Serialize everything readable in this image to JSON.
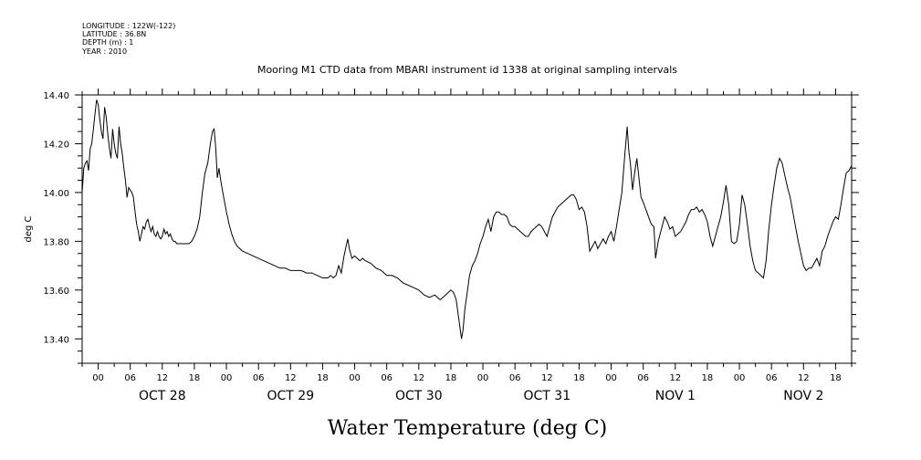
{
  "header": {
    "longitude": "LONGITUDE : 122W(-122)",
    "latitude": "LATITUDE : 36.8N",
    "depth": "DEPTH (m) : 1",
    "year": "YEAR : 2010",
    "title": "Mooring M1 CTD data from MBARI instrument id 1338 at original sampling intervals"
  },
  "chart_data": {
    "type": "line",
    "title": "Mooring M1 CTD data from MBARI instrument id 1338 at original sampling intervals",
    "xlabel": "Water Temperature (deg C)",
    "ylabel": "deg C",
    "ylim": [
      13.3,
      14.4
    ],
    "yticks": [
      "14.40",
      "14.20",
      "14.00",
      "13.80",
      "13.60",
      "13.40"
    ],
    "xlim_hours": [
      -3,
      141
    ],
    "hour_labels": [
      "00",
      "06",
      "12",
      "18"
    ],
    "day_labels": [
      "OCT 28",
      "OCT 29",
      "OCT 30",
      "OCT 31",
      "NOV  1",
      "NOV  2"
    ],
    "grid": false,
    "series": [
      {
        "color": "#000000",
        "points": [
          [
            -3.0,
            14.0
          ],
          [
            -2.7,
            14.1
          ],
          [
            -2.4,
            14.12
          ],
          [
            -2.1,
            14.13
          ],
          [
            -1.8,
            14.09
          ],
          [
            -1.5,
            14.18
          ],
          [
            -1.2,
            14.2
          ],
          [
            -0.9,
            14.26
          ],
          [
            -0.6,
            14.32
          ],
          [
            -0.3,
            14.38
          ],
          [
            0.0,
            14.36
          ],
          [
            0.3,
            14.3
          ],
          [
            0.6,
            14.25
          ],
          [
            0.9,
            14.22
          ],
          [
            1.2,
            14.35
          ],
          [
            1.5,
            14.31
          ],
          [
            1.8,
            14.24
          ],
          [
            2.1,
            14.18
          ],
          [
            2.4,
            14.14
          ],
          [
            2.7,
            14.26
          ],
          [
            3.0,
            14.2
          ],
          [
            3.3,
            14.16
          ],
          [
            3.6,
            14.14
          ],
          [
            3.9,
            14.27
          ],
          [
            4.2,
            14.2
          ],
          [
            4.5,
            14.16
          ],
          [
            4.8,
            14.1
          ],
          [
            5.1,
            14.05
          ],
          [
            5.4,
            13.98
          ],
          [
            5.7,
            14.02
          ],
          [
            6.0,
            14.01
          ],
          [
            6.3,
            14.0
          ],
          [
            6.6,
            13.98
          ],
          [
            6.9,
            13.92
          ],
          [
            7.2,
            13.87
          ],
          [
            7.5,
            13.84
          ],
          [
            7.8,
            13.8
          ],
          [
            8.1,
            13.83
          ],
          [
            8.4,
            13.86
          ],
          [
            8.7,
            13.85
          ],
          [
            9.0,
            13.88
          ],
          [
            9.3,
            13.89
          ],
          [
            9.6,
            13.86
          ],
          [
            9.9,
            13.84
          ],
          [
            10.2,
            13.86
          ],
          [
            10.5,
            13.83
          ],
          [
            10.8,
            13.82
          ],
          [
            11.1,
            13.84
          ],
          [
            11.4,
            13.82
          ],
          [
            11.7,
            13.81
          ],
          [
            12.0,
            13.82
          ],
          [
            12.3,
            13.85
          ],
          [
            12.6,
            13.83
          ],
          [
            12.9,
            13.84
          ],
          [
            13.2,
            13.82
          ],
          [
            13.5,
            13.83
          ],
          [
            13.8,
            13.81
          ],
          [
            14.1,
            13.8
          ],
          [
            14.4,
            13.8
          ],
          [
            14.7,
            13.79
          ],
          [
            15.0,
            13.79
          ],
          [
            15.5,
            13.79
          ],
          [
            16.0,
            13.79
          ],
          [
            16.5,
            13.79
          ],
          [
            17.0,
            13.79
          ],
          [
            17.5,
            13.8
          ],
          [
            18.0,
            13.82
          ],
          [
            18.5,
            13.85
          ],
          [
            19.0,
            13.9
          ],
          [
            19.5,
            14.0
          ],
          [
            20.0,
            14.08
          ],
          [
            20.5,
            14.12
          ],
          [
            21.0,
            14.2
          ],
          [
            21.4,
            14.25
          ],
          [
            21.7,
            14.26
          ],
          [
            22.0,
            14.18
          ],
          [
            22.3,
            14.06
          ],
          [
            22.6,
            14.1
          ],
          [
            23.0,
            14.04
          ],
          [
            23.5,
            13.98
          ],
          [
            24.0,
            13.92
          ],
          [
            24.5,
            13.87
          ],
          [
            25.0,
            13.83
          ],
          [
            25.5,
            13.8
          ],
          [
            26.0,
            13.78
          ],
          [
            26.5,
            13.77
          ],
          [
            27.0,
            13.76
          ],
          [
            28.0,
            13.75
          ],
          [
            29.0,
            13.74
          ],
          [
            30.0,
            13.73
          ],
          [
            31.0,
            13.72
          ],
          [
            32.0,
            13.71
          ],
          [
            33.0,
            13.7
          ],
          [
            34.0,
            13.69
          ],
          [
            35.0,
            13.69
          ],
          [
            36.0,
            13.68
          ],
          [
            37.0,
            13.68
          ],
          [
            38.0,
            13.68
          ],
          [
            39.0,
            13.67
          ],
          [
            40.0,
            13.67
          ],
          [
            41.0,
            13.66
          ],
          [
            42.0,
            13.65
          ],
          [
            43.0,
            13.65
          ],
          [
            43.5,
            13.66
          ],
          [
            44.0,
            13.65
          ],
          [
            44.5,
            13.66
          ],
          [
            45.0,
            13.7
          ],
          [
            45.5,
            13.67
          ],
          [
            46.0,
            13.74
          ],
          [
            46.4,
            13.78
          ],
          [
            46.7,
            13.81
          ],
          [
            47.0,
            13.77
          ],
          [
            47.5,
            13.73
          ],
          [
            48.0,
            13.74
          ],
          [
            48.5,
            13.73
          ],
          [
            49.0,
            13.72
          ],
          [
            49.5,
            13.73
          ],
          [
            50.0,
            13.72
          ],
          [
            51.0,
            13.71
          ],
          [
            52.0,
            13.69
          ],
          [
            53.0,
            13.68
          ],
          [
            54.0,
            13.66
          ],
          [
            55.0,
            13.66
          ],
          [
            56.0,
            13.65
          ],
          [
            57.0,
            13.63
          ],
          [
            58.0,
            13.62
          ],
          [
            59.0,
            13.61
          ],
          [
            60.0,
            13.6
          ],
          [
            61.0,
            13.58
          ],
          [
            62.0,
            13.57
          ],
          [
            63.0,
            13.58
          ],
          [
            64.0,
            13.56
          ],
          [
            65.0,
            13.58
          ],
          [
            66.0,
            13.6
          ],
          [
            66.5,
            13.59
          ],
          [
            67.0,
            13.56
          ],
          [
            67.5,
            13.48
          ],
          [
            68.0,
            13.4
          ],
          [
            68.3,
            13.44
          ],
          [
            68.6,
            13.52
          ],
          [
            69.0,
            13.58
          ],
          [
            69.5,
            13.66
          ],
          [
            70.0,
            13.7
          ],
          [
            70.5,
            13.72
          ],
          [
            71.0,
            13.75
          ],
          [
            71.5,
            13.79
          ],
          [
            72.0,
            13.82
          ],
          [
            72.5,
            13.86
          ],
          [
            73.0,
            13.89
          ],
          [
            73.5,
            13.84
          ],
          [
            74.0,
            13.9
          ],
          [
            74.5,
            13.92
          ],
          [
            75.0,
            13.92
          ],
          [
            75.5,
            13.91
          ],
          [
            76.0,
            13.91
          ],
          [
            76.5,
            13.9
          ],
          [
            77.0,
            13.87
          ],
          [
            77.5,
            13.86
          ],
          [
            78.0,
            13.86
          ],
          [
            78.5,
            13.85
          ],
          [
            79.0,
            13.84
          ],
          [
            79.5,
            13.83
          ],
          [
            80.0,
            13.82
          ],
          [
            80.5,
            13.82
          ],
          [
            81.0,
            13.84
          ],
          [
            81.5,
            13.85
          ],
          [
            82.0,
            13.86
          ],
          [
            82.5,
            13.87
          ],
          [
            83.0,
            13.86
          ],
          [
            83.5,
            13.84
          ],
          [
            84.0,
            13.82
          ],
          [
            84.5,
            13.86
          ],
          [
            85.0,
            13.9
          ],
          [
            85.5,
            13.92
          ],
          [
            86.0,
            13.94
          ],
          [
            86.5,
            13.95
          ],
          [
            87.0,
            13.96
          ],
          [
            87.5,
            13.97
          ],
          [
            88.0,
            13.98
          ],
          [
            88.5,
            13.99
          ],
          [
            89.0,
            13.99
          ],
          [
            89.5,
            13.97
          ],
          [
            90.0,
            13.93
          ],
          [
            90.5,
            13.94
          ],
          [
            91.0,
            13.92
          ],
          [
            91.5,
            13.86
          ],
          [
            92.0,
            13.76
          ],
          [
            92.5,
            13.78
          ],
          [
            93.0,
            13.8
          ],
          [
            93.5,
            13.77
          ],
          [
            94.0,
            13.79
          ],
          [
            94.5,
            13.81
          ],
          [
            95.0,
            13.79
          ],
          [
            95.5,
            13.82
          ],
          [
            96.0,
            13.84
          ],
          [
            96.5,
            13.8
          ],
          [
            97.0,
            13.86
          ],
          [
            97.5,
            13.93
          ],
          [
            98.0,
            14.0
          ],
          [
            98.5,
            14.14
          ],
          [
            98.8,
            14.22
          ],
          [
            99.0,
            14.27
          ],
          [
            99.3,
            14.17
          ],
          [
            99.6,
            14.12
          ],
          [
            100.0,
            14.01
          ],
          [
            100.4,
            14.08
          ],
          [
            100.8,
            14.14
          ],
          [
            101.2,
            14.06
          ],
          [
            101.6,
            13.98
          ],
          [
            102.0,
            13.96
          ],
          [
            102.5,
            13.93
          ],
          [
            103.0,
            13.9
          ],
          [
            103.5,
            13.87
          ],
          [
            104.0,
            13.86
          ],
          [
            104.3,
            13.73
          ],
          [
            104.8,
            13.8
          ],
          [
            105.4,
            13.85
          ],
          [
            106.0,
            13.9
          ],
          [
            106.5,
            13.88
          ],
          [
            107.0,
            13.85
          ],
          [
            107.5,
            13.86
          ],
          [
            108.0,
            13.82
          ],
          [
            108.5,
            13.83
          ],
          [
            109.0,
            13.84
          ],
          [
            109.5,
            13.86
          ],
          [
            110.0,
            13.88
          ],
          [
            110.5,
            13.91
          ],
          [
            111.0,
            13.93
          ],
          [
            111.5,
            13.93
          ],
          [
            112.0,
            13.94
          ],
          [
            112.5,
            13.92
          ],
          [
            113.0,
            13.93
          ],
          [
            113.5,
            13.91
          ],
          [
            114.0,
            13.88
          ],
          [
            114.5,
            13.82
          ],
          [
            115.0,
            13.78
          ],
          [
            115.5,
            13.82
          ],
          [
            116.0,
            13.86
          ],
          [
            116.5,
            13.9
          ],
          [
            117.0,
            13.96
          ],
          [
            117.5,
            14.03
          ],
          [
            118.0,
            13.95
          ],
          [
            118.5,
            13.8
          ],
          [
            119.0,
            13.79
          ],
          [
            119.5,
            13.8
          ],
          [
            120.0,
            13.87
          ],
          [
            120.5,
            13.99
          ],
          [
            121.0,
            13.95
          ],
          [
            121.5,
            13.87
          ],
          [
            122.0,
            13.78
          ],
          [
            122.5,
            13.72
          ],
          [
            123.0,
            13.68
          ],
          [
            123.5,
            13.67
          ],
          [
            124.0,
            13.66
          ],
          [
            124.5,
            13.65
          ],
          [
            125.0,
            13.72
          ],
          [
            125.5,
            13.85
          ],
          [
            126.0,
            13.95
          ],
          [
            126.5,
            14.03
          ],
          [
            127.0,
            14.1
          ],
          [
            127.5,
            14.14
          ],
          [
            128.0,
            14.12
          ],
          [
            128.5,
            14.07
          ],
          [
            129.0,
            14.02
          ],
          [
            129.5,
            13.98
          ],
          [
            130.0,
            13.92
          ],
          [
            130.5,
            13.86
          ],
          [
            131.0,
            13.8
          ],
          [
            131.5,
            13.75
          ],
          [
            132.0,
            13.7
          ],
          [
            132.5,
            13.68
          ],
          [
            133.0,
            13.69
          ],
          [
            133.5,
            13.69
          ],
          [
            134.0,
            13.71
          ],
          [
            134.5,
            13.73
          ],
          [
            135.0,
            13.7
          ],
          [
            135.5,
            13.76
          ],
          [
            136.0,
            13.78
          ],
          [
            136.5,
            13.82
          ],
          [
            137.0,
            13.85
          ],
          [
            137.5,
            13.88
          ],
          [
            138.0,
            13.9
          ],
          [
            138.5,
            13.89
          ],
          [
            139.0,
            13.95
          ],
          [
            139.5,
            14.02
          ],
          [
            140.0,
            14.08
          ],
          [
            140.5,
            14.09
          ],
          [
            141.0,
            14.11
          ]
        ]
      }
    ]
  }
}
